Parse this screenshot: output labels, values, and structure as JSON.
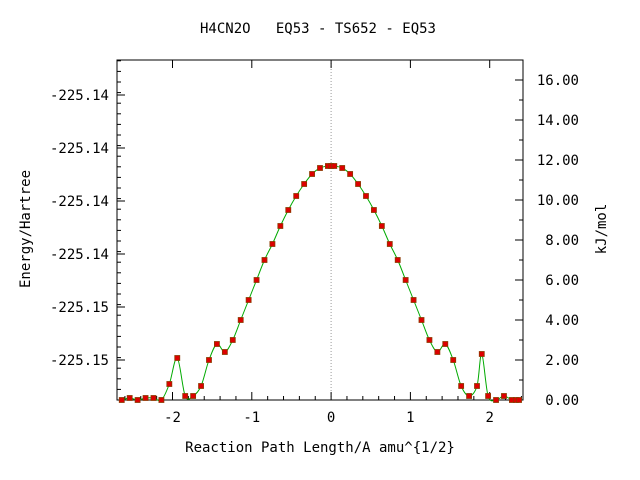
{
  "chart_data": {
    "type": "line",
    "title": "H4CN2O   EQ53 - TS652 - EQ53",
    "xlabel": "Reaction Path Length/A amu^{1/2}",
    "ylabel_left": "Energy/Hartree",
    "ylabel_right": "kJ/mol",
    "xlim": [
      -2.7,
      2.42
    ],
    "ylim_right": [
      0,
      17.0
    ],
    "x_ticks": [
      -2,
      -1,
      0,
      1,
      2
    ],
    "x_tick_labels": [
      "-2",
      "-1",
      "0",
      "1",
      "2"
    ],
    "left_ticks_kjmol": [
      2.0,
      4.65,
      7.3,
      9.95,
      12.6,
      15.25
    ],
    "left_tick_labels": [
      "-225.15",
      "-225.15",
      "-225.14",
      "-225.14",
      "-225.14",
      "-225.14"
    ],
    "right_ticks": [
      0,
      2,
      4,
      6,
      8,
      10,
      12,
      14,
      16
    ],
    "right_tick_labels": [
      "0.00",
      "2.00",
      "4.00",
      "6.00",
      "8.00",
      "10.00",
      "12.00",
      "14.00",
      "16.00"
    ],
    "ts_marker_x": 0,
    "colors": {
      "line": "#00aa00",
      "point_fill": "#dd0000",
      "point_edge": "#8b3a00",
      "ts_line": "#999999"
    },
    "series": [
      {
        "values": [
          [
            -2.64,
            0.0
          ],
          [
            -2.54,
            0.1
          ],
          [
            -2.44,
            0.0
          ],
          [
            -2.34,
            0.1
          ],
          [
            -2.24,
            0.1
          ],
          [
            -2.14,
            0.0
          ],
          [
            -2.04,
            0.8
          ],
          [
            -1.94,
            2.1
          ],
          [
            -1.84,
            0.2
          ],
          [
            -1.74,
            0.2
          ],
          [
            -1.64,
            0.7
          ],
          [
            -1.54,
            2.0
          ],
          [
            -1.44,
            2.8
          ],
          [
            -1.34,
            2.4
          ],
          [
            -1.24,
            3.0
          ],
          [
            -1.14,
            4.0
          ],
          [
            -1.04,
            5.0
          ],
          [
            -0.94,
            6.0
          ],
          [
            -0.84,
            7.0
          ],
          [
            -0.74,
            7.8
          ],
          [
            -0.64,
            8.7
          ],
          [
            -0.54,
            9.5
          ],
          [
            -0.44,
            10.2
          ],
          [
            -0.34,
            10.8
          ],
          [
            -0.24,
            11.3
          ],
          [
            -0.14,
            11.6
          ],
          [
            -0.04,
            11.7
          ],
          [
            0.0,
            11.7
          ],
          [
            0.04,
            11.7
          ],
          [
            0.14,
            11.6
          ],
          [
            0.24,
            11.3
          ],
          [
            0.34,
            10.8
          ],
          [
            0.44,
            10.2
          ],
          [
            0.54,
            9.5
          ],
          [
            0.64,
            8.7
          ],
          [
            0.74,
            7.8
          ],
          [
            0.84,
            7.0
          ],
          [
            0.94,
            6.0
          ],
          [
            1.04,
            5.0
          ],
          [
            1.14,
            4.0
          ],
          [
            1.24,
            3.0
          ],
          [
            1.34,
            2.4
          ],
          [
            1.44,
            2.8
          ],
          [
            1.54,
            2.0
          ],
          [
            1.64,
            0.7
          ],
          [
            1.74,
            0.2
          ],
          [
            1.84,
            0.7
          ],
          [
            1.9,
            2.3
          ],
          [
            1.98,
            0.2
          ],
          [
            2.08,
            0.0
          ],
          [
            2.18,
            0.2
          ],
          [
            2.28,
            0.0
          ],
          [
            2.33,
            0.0
          ],
          [
            2.37,
            0.0
          ]
        ]
      }
    ]
  }
}
